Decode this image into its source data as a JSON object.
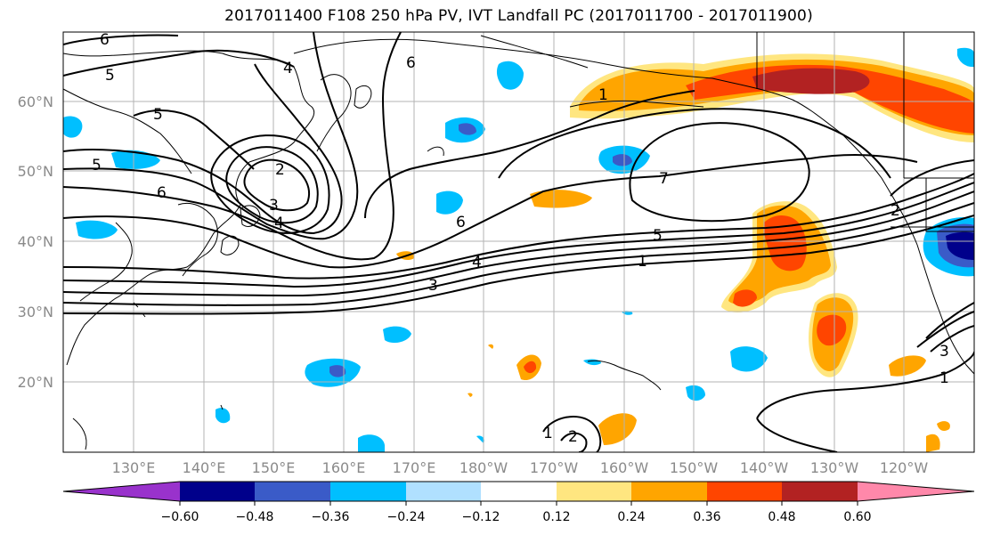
{
  "title": "2017011400 F108 250 hPa PV, IVT Landfall PC (2017011700 - 2017011900)",
  "lat_labels": [
    "60°N",
    "50°N",
    "40°N",
    "30°N",
    "20°N"
  ],
  "lon_labels": [
    "130°E",
    "140°E",
    "150°E",
    "160°E",
    "170°E",
    "180°W",
    "170°W",
    "160°W",
    "150°W",
    "140°W",
    "130°W",
    "120°W"
  ],
  "colorbar": {
    "ticks": [
      "−0.60",
      "−0.48",
      "−0.36",
      "−0.24",
      "−0.12",
      "0.12",
      "0.24",
      "0.36",
      "0.48",
      "0.60"
    ],
    "colors": [
      "#9932cc",
      "#00008b",
      "#3a5bc8",
      "#00bfff",
      "#b0e0ff",
      "#ffffff",
      "#ffe680",
      "#ffa500",
      "#ff4500",
      "#b22222",
      "#ff88aa"
    ]
  },
  "contour_labels": [
    "6",
    "5",
    "4",
    "5",
    "5",
    "6",
    "2",
    "3",
    "4",
    "6",
    "6",
    "7",
    "5",
    "4",
    "3",
    "1",
    "1",
    "2",
    "2",
    "1",
    "3",
    "1"
  ],
  "colors": {
    "contour": "#000000",
    "grid": "#b3b3b3",
    "coast": "#000000"
  }
}
